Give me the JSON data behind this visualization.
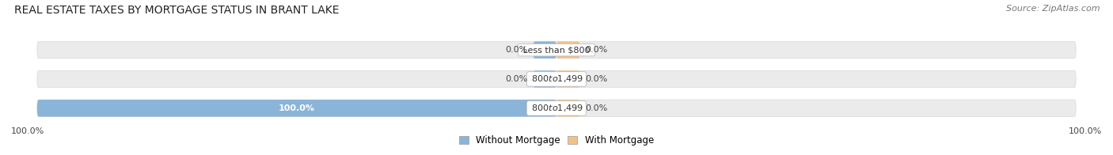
{
  "title": "REAL ESTATE TAXES BY MORTGAGE STATUS IN BRANT LAKE",
  "source": "Source: ZipAtlas.com",
  "categories": [
    "Less than $800",
    "$800 to $1,499",
    "$800 to $1,499"
  ],
  "without_mortgage": [
    0.0,
    0.0,
    100.0
  ],
  "with_mortgage": [
    0.0,
    0.0,
    0.0
  ],
  "bar_color_without": "#8ab4d8",
  "bar_color_with": "#f2c189",
  "bg_bar_color": "#ebebeb",
  "bg_bar_edge": "#d8d8d8",
  "title_fontsize": 10,
  "label_fontsize": 8,
  "legend_fontsize": 8.5,
  "source_fontsize": 8,
  "x_left_label": "100.0%",
  "x_right_label": "100.0%",
  "small_bar_width": 4.5
}
